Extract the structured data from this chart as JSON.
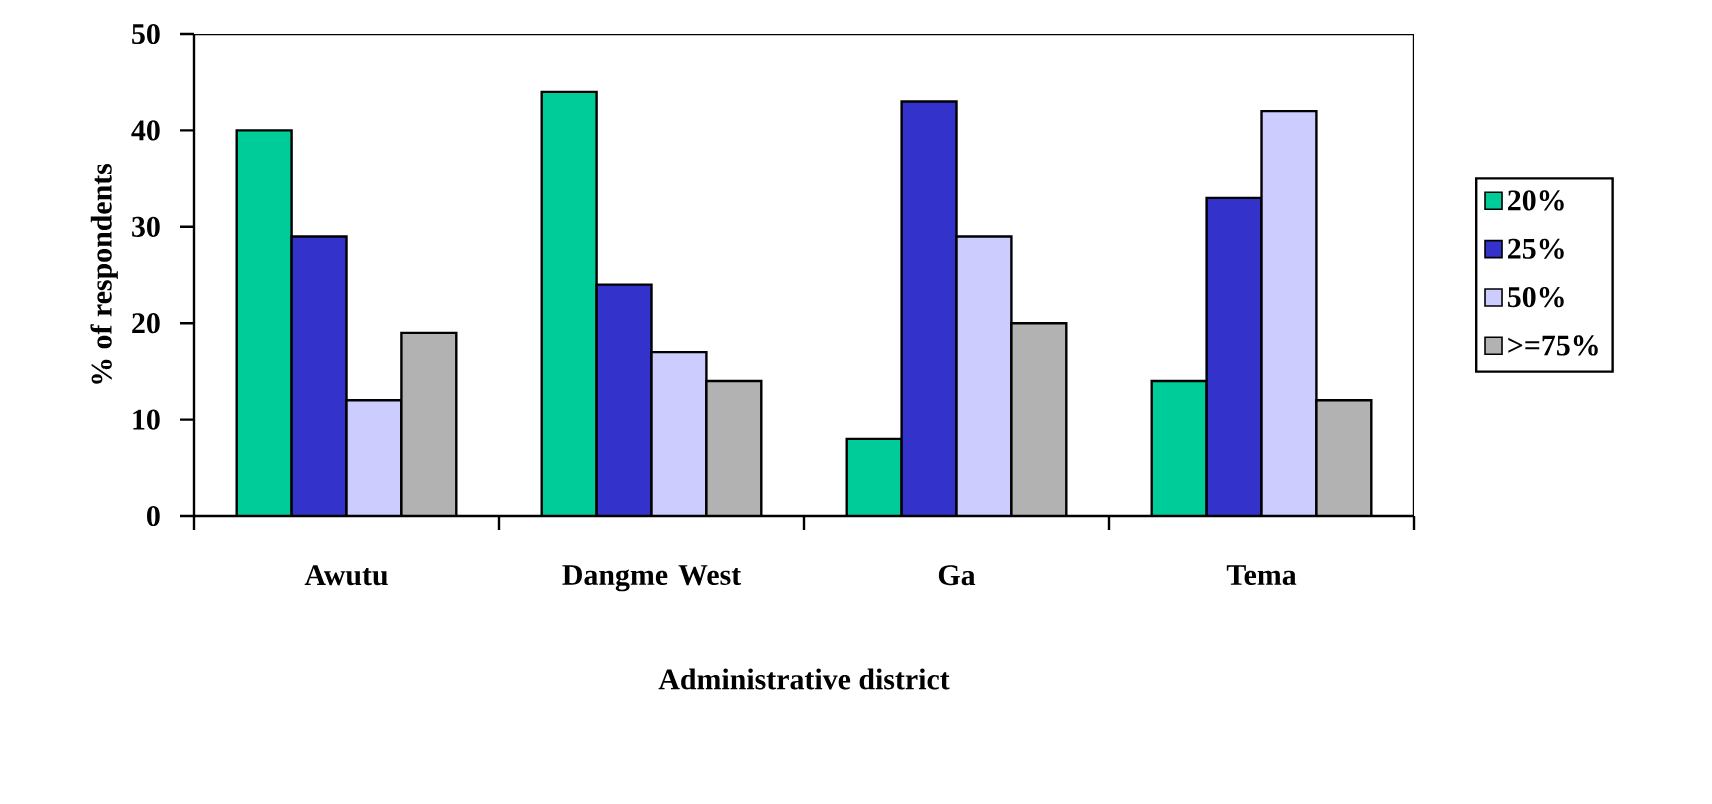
{
  "chart_data": {
    "type": "bar",
    "xlabel": "Administrative district",
    "ylabel": "% of respondents",
    "categories": [
      "Awutu",
      "Dangme West",
      "Ga",
      "Tema"
    ],
    "series": [
      {
        "name": "20%",
        "color": "#00cc99",
        "values": [
          40,
          44,
          8,
          14
        ]
      },
      {
        "name": "25%",
        "color": "#3333cc",
        "values": [
          29,
          24,
          43,
          33
        ]
      },
      {
        "name": "50%",
        "color": "#ccccff",
        "values": [
          12,
          17,
          29,
          42
        ]
      },
      {
        "name": ">=75%",
        "color": "#b2b2b2",
        "values": [
          19,
          14,
          20,
          12
        ]
      }
    ],
    "ylim": [
      0,
      50
    ],
    "yticks": [
      0,
      10,
      20,
      30,
      40,
      50
    ],
    "legend": "right"
  }
}
